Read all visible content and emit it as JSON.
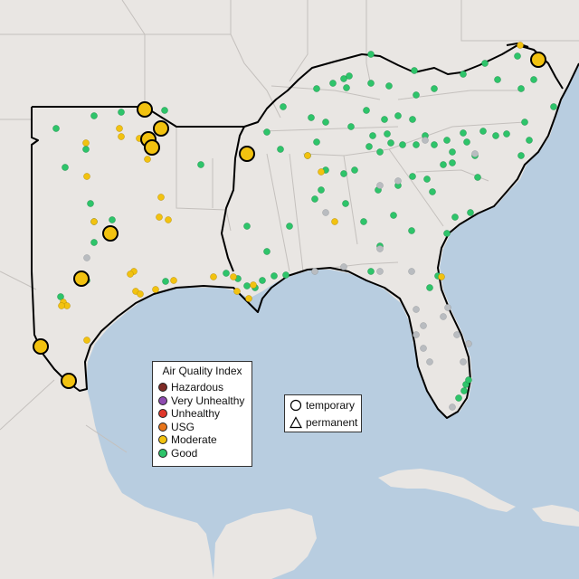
{
  "legend_aqi": {
    "title": "Air Quality Index",
    "items": [
      {
        "label": "Hazardous",
        "color": "#7e2a25"
      },
      {
        "label": "Very Unhealthy",
        "color": "#8e4bb0"
      },
      {
        "label": "Unhealthy",
        "color": "#e0382b"
      },
      {
        "label": "USG",
        "color": "#e8751b"
      },
      {
        "label": "Moderate",
        "color": "#f2c210"
      },
      {
        "label": "Good",
        "color": "#2ec46a"
      }
    ]
  },
  "legend_shape": {
    "items": [
      {
        "label": "temporary",
        "icon": "circle-icon"
      },
      {
        "label": "permanent",
        "icon": "triangle-icon"
      }
    ]
  },
  "colors": {
    "good": "#2ec46a",
    "moderate": "#f2c210",
    "no_data": "#b9bcc0",
    "ocean": "#b8cde0",
    "land": "#e9e6e3"
  }
}
